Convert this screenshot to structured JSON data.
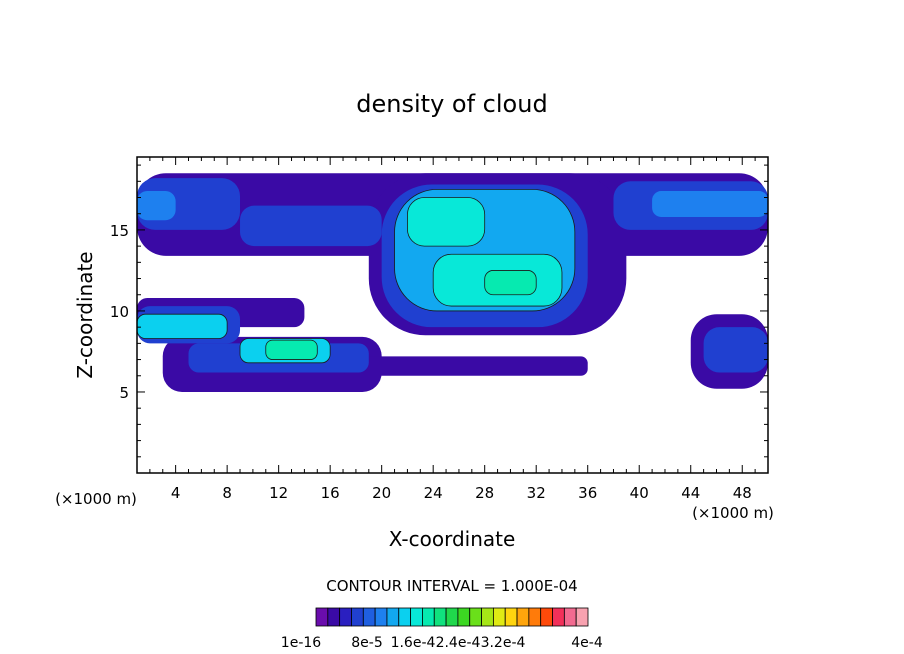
{
  "chart_data": {
    "type": "heatmap",
    "title": "density of cloud",
    "xlabel": "X-coordinate",
    "ylabel": "Z-coordinate",
    "xunit": "(×1000 m)",
    "zunit": "(×1000 m)",
    "xlim": [
      1,
      50
    ],
    "ylim": [
      0,
      19.5
    ],
    "xticks": [
      4,
      8,
      12,
      16,
      20,
      24,
      28,
      32,
      36,
      40,
      44,
      48
    ],
    "yticks": [
      5,
      10,
      15
    ],
    "contour_interval_text": "CONTOUR INTERVAL = 1.000E-04",
    "colorbar": {
      "tick_labels": [
        "1e-16",
        "8e-5",
        "1.6e-4",
        "2.4e-4",
        "3.2e-4",
        "4e-4"
      ],
      "colors": [
        "#6a0dad",
        "#3a0aa5",
        "#2a1fc0",
        "#2040d0",
        "#1f5fe0",
        "#1e80ef",
        "#12a8f0",
        "#0bd0ef",
        "#08e8d8",
        "#06eab0",
        "#10e27e",
        "#20d84c",
        "#3cd822",
        "#6ae01a",
        "#a6e617",
        "#e0ea14",
        "#ffd50f",
        "#ffa50c",
        "#ff7b0a",
        "#ff4a0a",
        "#f2305a",
        "#f26a90",
        "#f8a2b0"
      ]
    },
    "regions": [
      {
        "level": 1,
        "x": [
          1,
          50
        ],
        "z": [
          13.4,
          18.5
        ]
      },
      {
        "level": 1,
        "x": [
          1,
          14
        ],
        "z": [
          9.0,
          10.8
        ]
      },
      {
        "level": 1,
        "x": [
          3,
          20
        ],
        "z": [
          5.0,
          8.4
        ]
      },
      {
        "level": 1,
        "x": [
          19,
          39
        ],
        "z": [
          8.5,
          18.5
        ]
      },
      {
        "level": 1,
        "x": [
          44,
          50
        ],
        "z": [
          5.2,
          9.8
        ]
      },
      {
        "level": 1,
        "x": [
          17,
          36
        ],
        "z": [
          6.0,
          7.2
        ]
      },
      {
        "level": 3,
        "x": [
          1,
          9
        ],
        "z": [
          15.0,
          18.2
        ]
      },
      {
        "level": 3,
        "x": [
          9,
          20
        ],
        "z": [
          14.0,
          16.5
        ]
      },
      {
        "level": 3,
        "x": [
          38,
          50
        ],
        "z": [
          15.0,
          18.0
        ]
      },
      {
        "level": 3,
        "x": [
          1,
          9
        ],
        "z": [
          8.0,
          10.3
        ]
      },
      {
        "level": 3,
        "x": [
          5,
          19
        ],
        "z": [
          6.2,
          8.0
        ]
      },
      {
        "level": 3,
        "x": [
          20,
          36
        ],
        "z": [
          9.0,
          17.8
        ]
      },
      {
        "level": 3,
        "x": [
          45,
          50
        ],
        "z": [
          6.2,
          9.0
        ]
      },
      {
        "level": 5,
        "x": [
          1,
          4
        ],
        "z": [
          15.6,
          17.4
        ]
      },
      {
        "level": 5,
        "x": [
          41,
          50
        ],
        "z": [
          15.8,
          17.4
        ]
      },
      {
        "level": 6,
        "x": [
          21,
          35
        ],
        "z": [
          10.0,
          17.5
        ]
      },
      {
        "level": 7,
        "x": [
          1,
          8
        ],
        "z": [
          8.3,
          9.8
        ]
      },
      {
        "level": 7,
        "x": [
          9,
          16
        ],
        "z": [
          6.8,
          8.3
        ]
      },
      {
        "level": 8,
        "x": [
          22,
          28
        ],
        "z": [
          14.0,
          17.0
        ]
      },
      {
        "level": 8,
        "x": [
          24,
          34
        ],
        "z": [
          10.3,
          13.5
        ]
      },
      {
        "level": 9,
        "x": [
          11,
          15
        ],
        "z": [
          7.0,
          8.2
        ]
      },
      {
        "level": 9,
        "x": [
          28,
          32
        ],
        "z": [
          11.0,
          12.5
        ]
      }
    ]
  }
}
